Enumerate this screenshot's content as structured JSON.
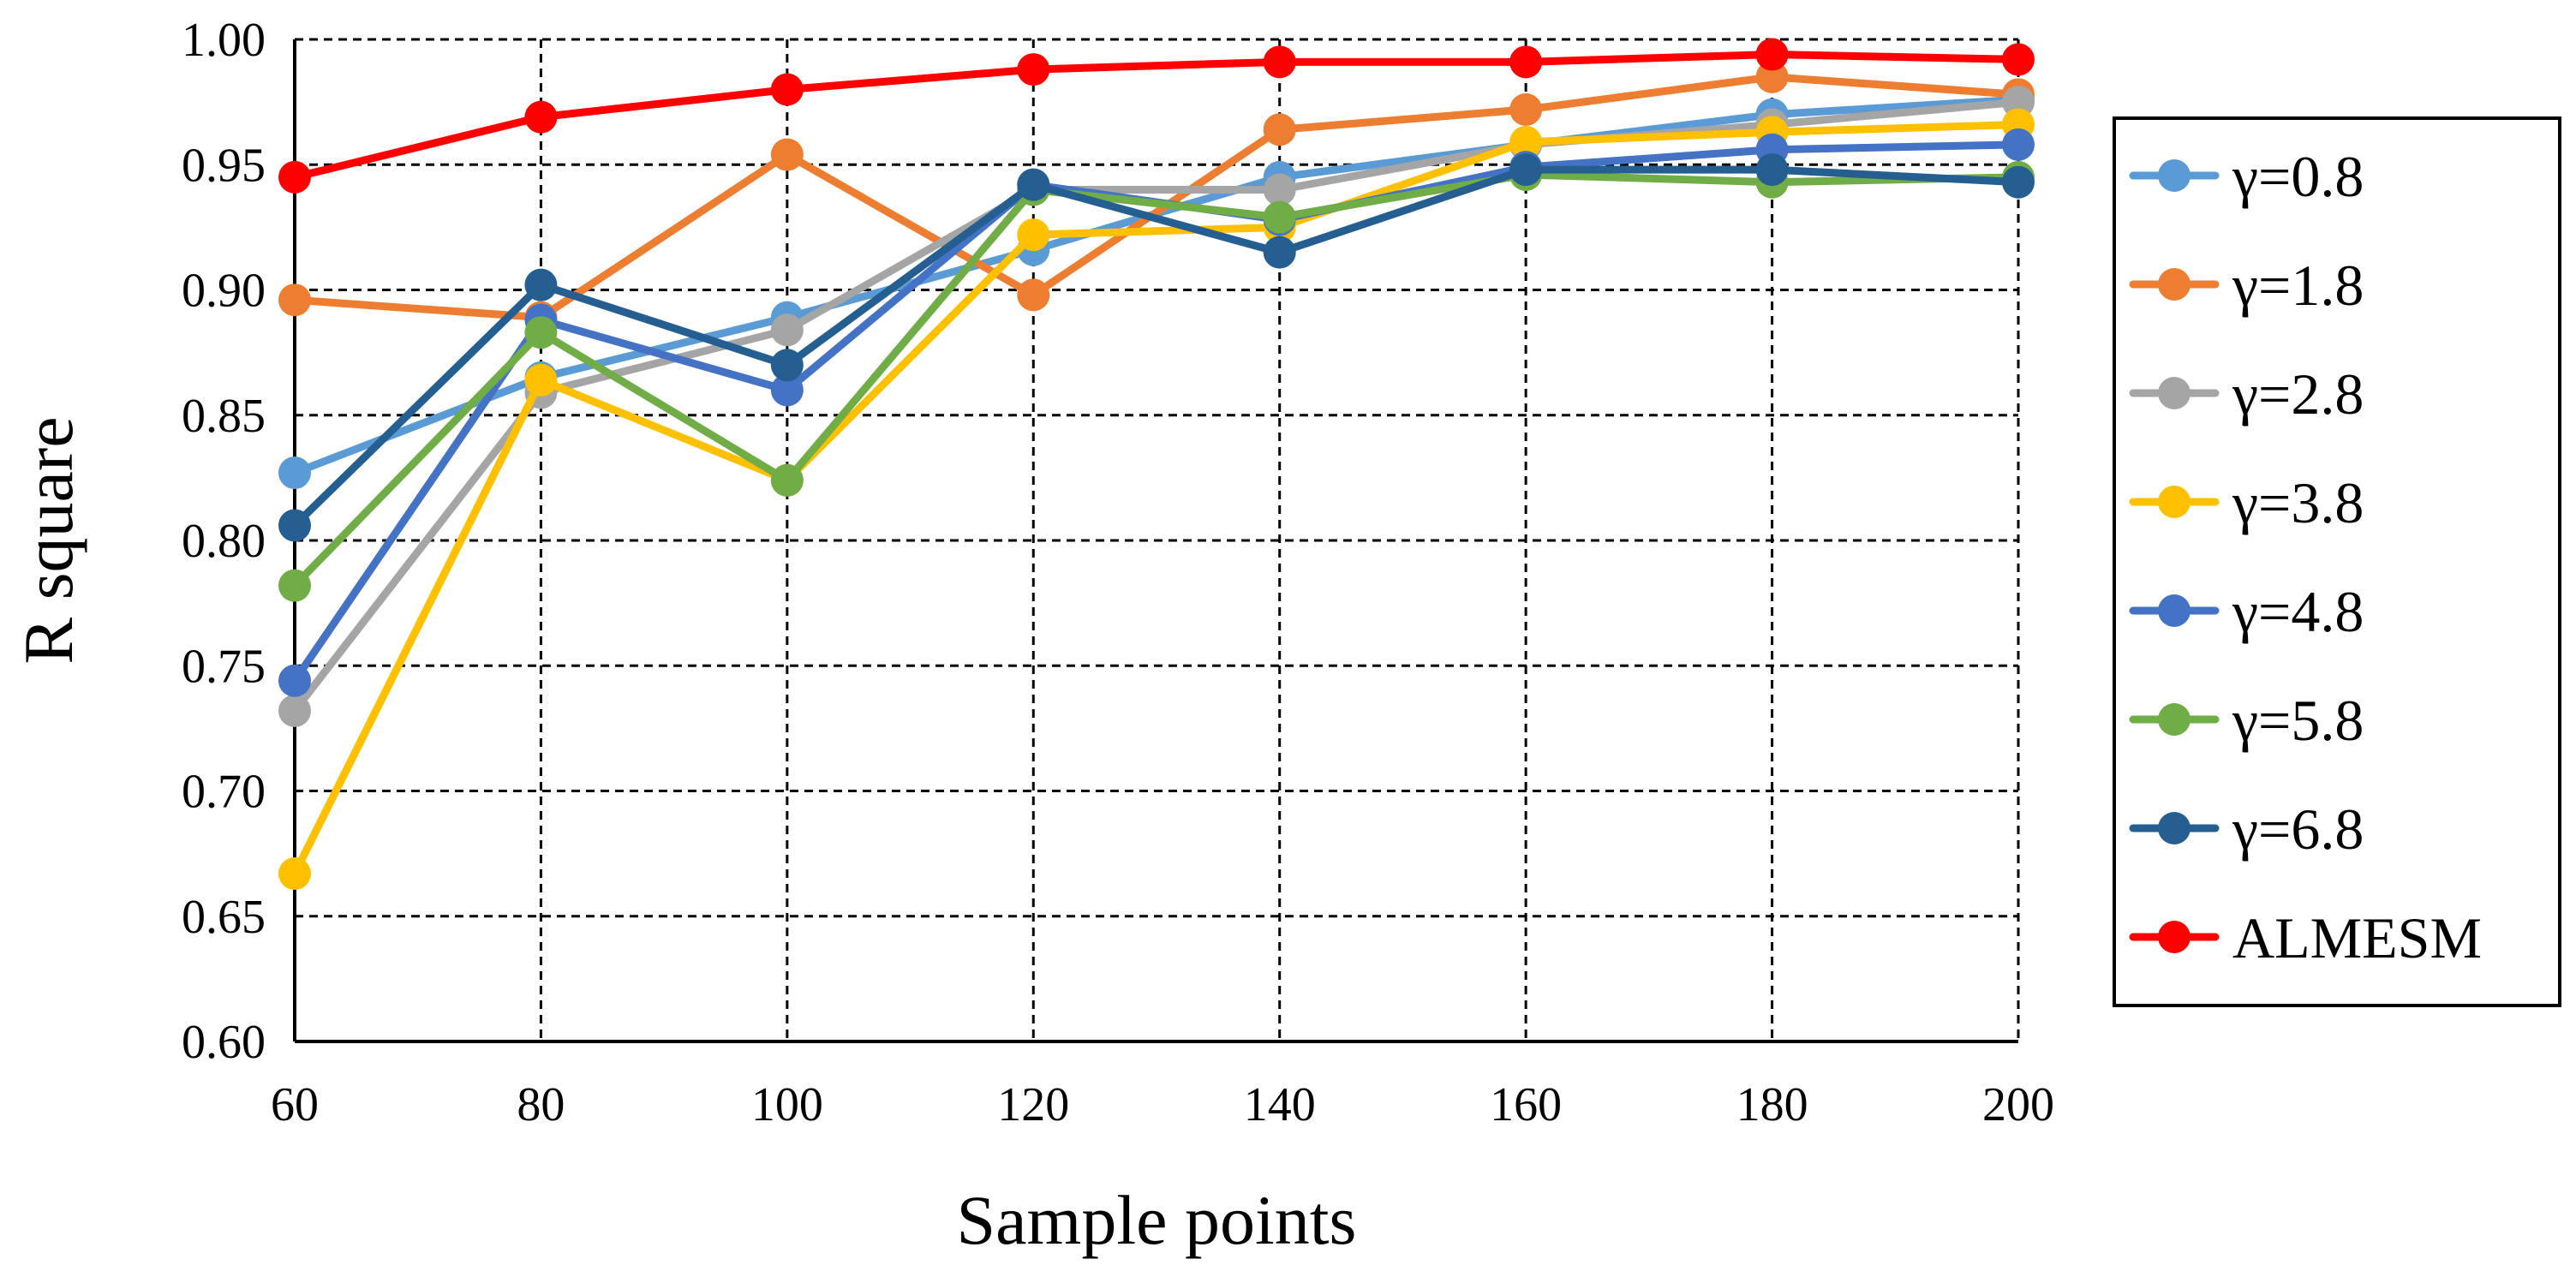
{
  "chart_data": {
    "type": "line",
    "title": "",
    "xlabel": "Sample points",
    "ylabel": "R square",
    "x": [
      60,
      80,
      100,
      120,
      140,
      160,
      180,
      200
    ],
    "xlim": [
      60,
      200
    ],
    "ylim": [
      0.6,
      1.0
    ],
    "xticks": [
      "60",
      "80",
      "100",
      "120",
      "140",
      "160",
      "180",
      "200"
    ],
    "yticks": [
      "0.60",
      "0.65",
      "0.70",
      "0.75",
      "0.80",
      "0.85",
      "0.90",
      "0.95",
      "1.00"
    ],
    "grid": true,
    "legend_position": "right",
    "series": [
      {
        "name": "γ=0.8",
        "color": "#5B9BD5",
        "values": [
          0.827,
          0.865,
          0.889,
          0.916,
          0.945,
          0.958,
          0.97,
          0.976
        ]
      },
      {
        "name": "γ=1.8",
        "color": "#ED7D31",
        "values": [
          0.896,
          0.889,
          0.954,
          0.898,
          0.964,
          0.972,
          0.985,
          0.978
        ]
      },
      {
        "name": "γ=2.8",
        "color": "#A5A5A5",
        "values": [
          0.732,
          0.859,
          0.884,
          0.94,
          0.94,
          0.958,
          0.966,
          0.975
        ]
      },
      {
        "name": "γ=3.8",
        "color": "#FFC000",
        "values": [
          0.667,
          0.864,
          0.824,
          0.922,
          0.925,
          0.959,
          0.963,
          0.966
        ]
      },
      {
        "name": "γ=4.8",
        "color": "#4472C4",
        "values": [
          0.744,
          0.888,
          0.86,
          0.942,
          0.928,
          0.949,
          0.956,
          0.958
        ]
      },
      {
        "name": "γ=5.8",
        "color": "#70AD47",
        "values": [
          0.782,
          0.883,
          0.824,
          0.94,
          0.929,
          0.946,
          0.943,
          0.945
        ]
      },
      {
        "name": "γ=6.8",
        "color": "#255E91",
        "values": [
          0.806,
          0.902,
          0.87,
          0.942,
          0.915,
          0.948,
          0.948,
          0.943
        ]
      },
      {
        "name": "ALMESM",
        "color": "#FF0000",
        "values": [
          0.945,
          0.969,
          0.98,
          0.988,
          0.991,
          0.991,
          0.994,
          0.992
        ]
      }
    ]
  }
}
